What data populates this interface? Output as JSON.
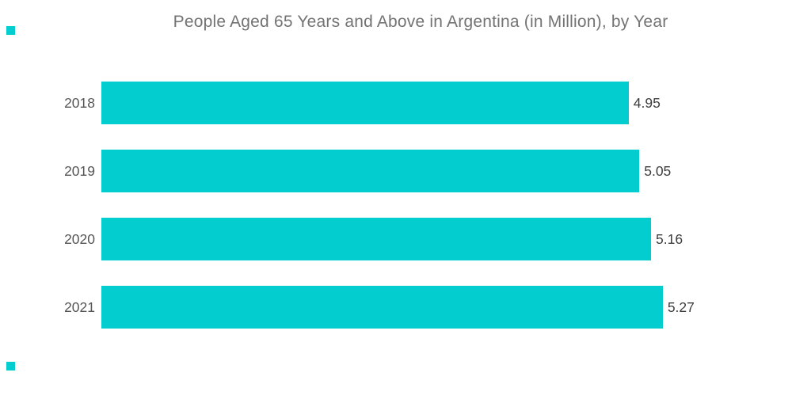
{
  "header": {
    "title": "People Aged 65 Years and Above in Argentina (in Million), by Year"
  },
  "chart_data": {
    "type": "bar",
    "orientation": "horizontal",
    "title": "People Aged 65 Years and Above in Argentina (in Million), by Year",
    "categories": [
      "2018",
      "2019",
      "2020",
      "2021"
    ],
    "values": [
      4.95,
      5.05,
      5.16,
      5.27
    ],
    "value_labels": [
      "4.95",
      "5.05",
      "5.16",
      "5.27"
    ],
    "xlabel": "",
    "ylabel": "",
    "xlim": [
      0,
      5.27
    ],
    "grid": false,
    "legend": false,
    "bar_color": "#03cdcf",
    "title_color": "#737373",
    "category_label_color": "#555555",
    "value_label_color": "#3e3e3e",
    "background_color": "#ffffff"
  },
  "decorations": {
    "corner_mark_color": "#03cdcf",
    "corner_marks": [
      {
        "position": "top-left"
      },
      {
        "position": "bottom-left"
      }
    ]
  }
}
